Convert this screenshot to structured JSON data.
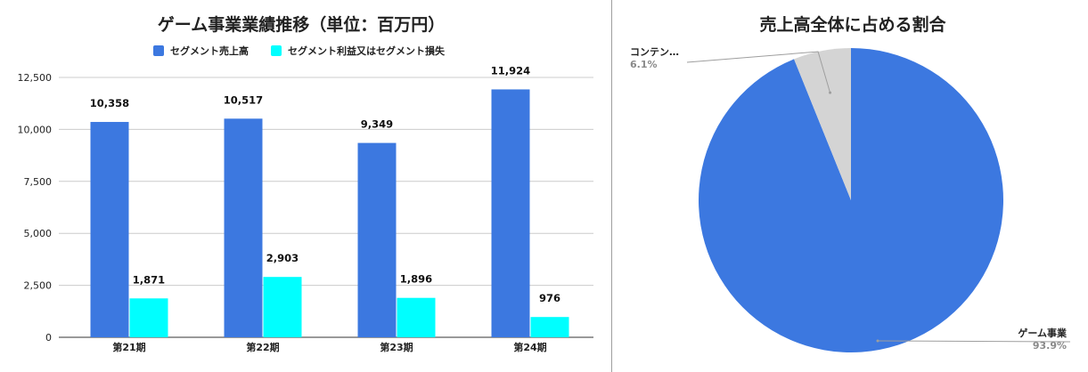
{
  "chart_data": [
    {
      "type": "bar",
      "title": "ゲーム事業業績推移（単位：百万円）",
      "categories": [
        "第21期",
        "第22期",
        "第23期",
        "第24期"
      ],
      "series": [
        {
          "name": "セグメント売上高",
          "values": [
            10358,
            10517,
            9349,
            11924
          ],
          "labels": [
            "10,358",
            "10,517",
            "9,349",
            "11,924"
          ],
          "color": "#3c78e0"
        },
        {
          "name": "セグメント利益又はセグメント損失",
          "values": [
            1871,
            2903,
            1896,
            976
          ],
          "labels": [
            "1,871",
            "2,903",
            "1,896",
            "976"
          ],
          "color": "#00ffff"
        }
      ],
      "yticks": [
        "0",
        "2,500",
        "5,000",
        "7,500",
        "10,000",
        "12,500"
      ],
      "ytick_values": [
        0,
        2500,
        5000,
        7500,
        10000,
        12500
      ],
      "ylim": [
        0,
        12500
      ],
      "grid": true,
      "legend_position": "top"
    },
    {
      "type": "pie",
      "title": "売上高全体に占める割合",
      "slices": [
        {
          "name": "ゲーム事業",
          "value": 93.9,
          "label": "93.9%",
          "color": "#3c78e0"
        },
        {
          "name": "コンテン…",
          "value": 6.1,
          "label": "6.1%",
          "color": "#d4d4d4"
        }
      ]
    }
  ]
}
